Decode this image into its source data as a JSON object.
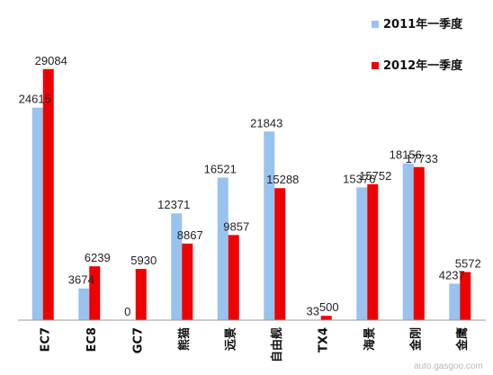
{
  "chart_data": {
    "type": "bar",
    "categories": [
      "EC7",
      "EC8",
      "GC7",
      "熊猫",
      "远景",
      "自由舰",
      "TX4",
      "海景",
      "金刚",
      "金鹰"
    ],
    "series": [
      {
        "name": "2011年一季度",
        "color": "#99C2EE",
        "values": [
          24615,
          3674,
          0,
          12371,
          16521,
          21843,
          33,
          15376,
          18156,
          4237
        ],
        "labels": [
          "24615",
          "3674",
          "0",
          "12371",
          "16521",
          "21843",
          "33",
          "15376",
          "18156",
          "4237"
        ]
      },
      {
        "name": "2012年一季度",
        "color": "#EE0000",
        "values": [
          29084,
          6239,
          5930,
          8867,
          9857,
          15288,
          500,
          15752,
          17733,
          5572
        ],
        "labels": [
          "29084",
          "6239",
          "5930",
          "8867",
          "9857",
          "15288",
          "500",
          "15752",
          "17733",
          "5572"
        ]
      }
    ],
    "ylim": [
      0,
      30000
    ],
    "grid": false,
    "legend_position": "top-right"
  },
  "watermark": "auto.gasgoo.com"
}
